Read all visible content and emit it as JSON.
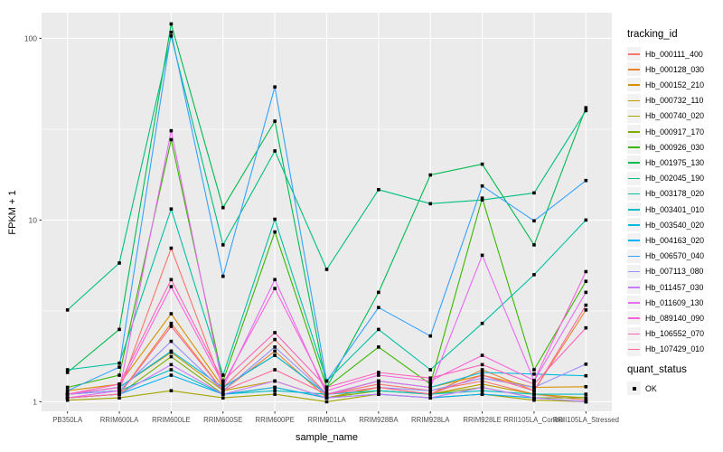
{
  "figure": {
    "panel_bg": "#EBEBEB",
    "grid_color": "#FFFFFF",
    "tick_color": "#333333",
    "tick_label_color": "#4D4D4D",
    "point_color": "#000000",
    "legend_key_bg": "#F2F2F2"
  },
  "chart_data": {
    "type": "line",
    "title": "",
    "xlabel": "sample_name",
    "ylabel": "FPKM + 1",
    "y_scale": "log10",
    "y_ticks": [
      1,
      10,
      100
    ],
    "y_minor": [
      3.162,
      31.62
    ],
    "ylim": [
      0.89,
      139
    ],
    "grid": "on",
    "legend_position": "right",
    "legend_title": "tracking_id",
    "legend2_title": "quant_status",
    "legend2_items": [
      {
        "label": "OK"
      }
    ],
    "categories": [
      "PB350LA",
      "RRIM600LA",
      "RRIM600LE",
      "RRIM600SE",
      "RRIM600PE",
      "RRIM901LA",
      "RRIM928BA",
      "RRIM928LA",
      "RRIM928LE",
      "RRII105LA_Control",
      "RRII105LA_Stressed"
    ],
    "series": [
      {
        "name": "Hb_000111_400",
        "color": "#F8766D",
        "values": [
          1.1,
          1.15,
          7.0,
          1.2,
          2.2,
          1.1,
          1.25,
          1.15,
          1.3,
          1.1,
          1.02
        ]
      },
      {
        "name": "Hb_000128_030",
        "color": "#EA8331",
        "values": [
          1.05,
          1.1,
          2.7,
          1.15,
          1.9,
          1.05,
          1.2,
          1.1,
          1.5,
          1.15,
          3.2
        ]
      },
      {
        "name": "Hb_000152_210",
        "color": "#D89000",
        "values": [
          1.15,
          1.25,
          3.05,
          1.2,
          1.8,
          1.1,
          1.3,
          1.2,
          1.4,
          1.2,
          1.21
        ]
      },
      {
        "name": "Hb_000732_110",
        "color": "#C09B00",
        "values": [
          1.1,
          1.2,
          1.87,
          1.15,
          1.3,
          1.05,
          1.2,
          1.1,
          1.25,
          1.1,
          1.05
        ]
      },
      {
        "name": "Hb_000740_020",
        "color": "#A3A500",
        "values": [
          1.02,
          1.05,
          1.15,
          1.05,
          1.1,
          1.0,
          1.1,
          1.05,
          1.1,
          1.02,
          1.0
        ]
      },
      {
        "name": "Hb_000917_170",
        "color": "#7CAE00",
        "values": [
          1.05,
          1.1,
          1.77,
          1.1,
          1.2,
          1.05,
          1.15,
          1.1,
          1.2,
          1.05,
          1.05
        ]
      },
      {
        "name": "Hb_000926_030",
        "color": "#39B600",
        "values": [
          1.2,
          1.4,
          27.7,
          1.3,
          8.6,
          1.2,
          2.0,
          1.25,
          13.2,
          1.5,
          4.6
        ]
      },
      {
        "name": "Hb_001975_130",
        "color": "#00BB4E",
        "values": [
          1.45,
          2.5,
          120,
          11.7,
          35,
          1.2,
          4.0,
          17.7,
          20.3,
          7.3,
          41.5
        ]
      },
      {
        "name": "Hb_002045_190",
        "color": "#00BF7D",
        "values": [
          3.2,
          5.8,
          103,
          7.3,
          24,
          5.35,
          14.7,
          12.3,
          12.9,
          14.1,
          40.0
        ]
      },
      {
        "name": "Hb_003178_020",
        "color": "#00C1A3",
        "values": [
          1.5,
          1.63,
          11.5,
          1.4,
          10.1,
          1.3,
          2.5,
          1.5,
          2.7,
          5.0,
          10.0
        ]
      },
      {
        "name": "Hb_003401_010",
        "color": "#00BFC4",
        "values": [
          1.1,
          1.15,
          1.5,
          1.1,
          1.15,
          1.1,
          1.15,
          1.1,
          1.15,
          1.1,
          1.1
        ]
      },
      {
        "name": "Hb_003540_020",
        "color": "#00BAE0",
        "values": [
          1.1,
          1.2,
          1.9,
          1.2,
          1.8,
          1.1,
          1.3,
          1.2,
          1.45,
          1.42,
          1.39
        ]
      },
      {
        "name": "Hb_004163_020",
        "color": "#00B0F6",
        "values": [
          1.05,
          1.1,
          1.4,
          1.1,
          1.2,
          1.05,
          1.1,
          1.05,
          1.1,
          1.05,
          1.0
        ]
      },
      {
        "name": "Hb_006570_040",
        "color": "#35A2FF",
        "values": [
          1.15,
          1.55,
          108,
          4.9,
          54,
          1.3,
          3.3,
          2.3,
          15.4,
          9.9,
          16.5
        ]
      },
      {
        "name": "Hb_007113_080",
        "color": "#9590FF",
        "values": [
          1.1,
          1.15,
          2.15,
          1.15,
          2.0,
          1.1,
          1.2,
          1.15,
          1.35,
          1.2,
          1.61
        ]
      },
      {
        "name": "Hb_011457_030",
        "color": "#C77CFF",
        "values": [
          1.05,
          1.1,
          1.6,
          1.1,
          1.3,
          1.05,
          1.1,
          1.05,
          1.2,
          1.05,
          1.0
        ]
      },
      {
        "name": "Hb_011609_130",
        "color": "#E76BF3",
        "values": [
          1.05,
          1.15,
          31,
          1.2,
          4.7,
          1.1,
          1.3,
          1.2,
          6.4,
          1.3,
          4.0
        ]
      },
      {
        "name": "Hb_089140_090",
        "color": "#FA62DB",
        "values": [
          1.1,
          1.2,
          4.3,
          1.25,
          4.2,
          1.15,
          1.4,
          1.3,
          1.8,
          1.31,
          5.2
        ]
      },
      {
        "name": "Hb_106552_070",
        "color": "#FF62BC",
        "values": [
          1.1,
          1.25,
          4.7,
          1.3,
          2.4,
          1.2,
          1.45,
          1.35,
          1.6,
          1.25,
          2.55
        ]
      },
      {
        "name": "Hb_107429_010",
        "color": "#FF6A98",
        "values": [
          1.05,
          1.1,
          2.6,
          1.15,
          1.5,
          1.1,
          1.2,
          1.1,
          1.4,
          1.15,
          3.4
        ]
      }
    ]
  }
}
